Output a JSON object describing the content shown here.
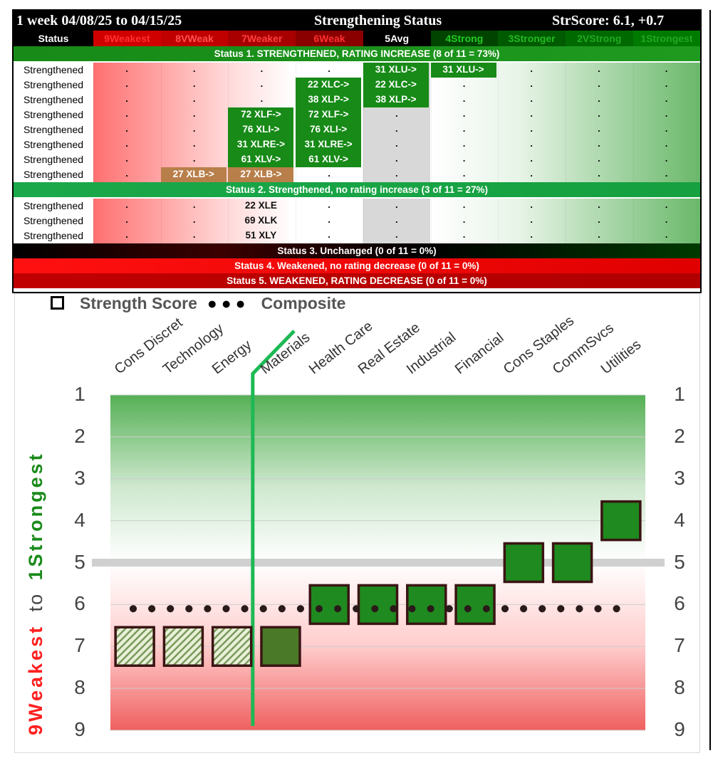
{
  "header": {
    "period": "1 week 04/08/25 to 04/15/25",
    "title": "Strengthening Status",
    "score": "StrScore: 6.1, +0.7"
  },
  "columns": {
    "status": "Status",
    "levels": [
      "9Weakest",
      "8VWeak",
      "7Weaker",
      "6Weak",
      "5Avg",
      "4Strong",
      "3Stronger",
      "2VStrong",
      "1Strongest"
    ],
    "level_colors": [
      "#ff3030",
      "#ff5050",
      "#ff4040",
      "#ff3030",
      "#ffffff",
      "#22cc22",
      "#22bb22",
      "#22aa22",
      "#22aa22"
    ]
  },
  "bands": {
    "s1": "Status 1. STRENGTHENED, RATING INCREASE (8 of 11 = 73%)",
    "s2": "Status 2. Strengthened, no rating increase (3 of 11 = 27%)",
    "s3": "Status 3. Unchanged (0 of 11 = 0%)",
    "s4": "Status 4. Weakened, no rating decrease (0 of 11 = 0%)",
    "s5": "Status 5. WEAKENED, RATING DECREASE (0 of 11 = 0%)"
  },
  "rows": [
    {
      "status": "Strengthened",
      "cells": [
        {
          "col": 4,
          "text": "31 XLU->",
          "style": "g"
        },
        {
          "col": 5,
          "text": "31 XLU->",
          "style": "g"
        }
      ]
    },
    {
      "status": "Strengthened",
      "cells": [
        {
          "col": 3,
          "text": "22 XLC->",
          "style": "g"
        },
        {
          "col": 4,
          "text": "22 XLC->",
          "style": "g"
        }
      ]
    },
    {
      "status": "Strengthened",
      "cells": [
        {
          "col": 3,
          "text": "38 XLP->",
          "style": "g"
        },
        {
          "col": 4,
          "text": "38 XLP->",
          "style": "g"
        }
      ]
    },
    {
      "status": "Strengthened",
      "cells": [
        {
          "col": 2,
          "text": "72 XLF->",
          "style": "g"
        },
        {
          "col": 3,
          "text": "72 XLF->",
          "style": "g"
        }
      ]
    },
    {
      "status": "Strengthened",
      "cells": [
        {
          "col": 2,
          "text": "76 XLI->",
          "style": "g"
        },
        {
          "col": 3,
          "text": "76 XLI->",
          "style": "g"
        }
      ]
    },
    {
      "status": "Strengthened",
      "cells": [
        {
          "col": 2,
          "text": "31 XLRE->",
          "style": "g"
        },
        {
          "col": 3,
          "text": "31 XLRE->",
          "style": "g"
        }
      ]
    },
    {
      "status": "Strengthened",
      "cells": [
        {
          "col": 2,
          "text": "61 XLV->",
          "style": "g"
        },
        {
          "col": 3,
          "text": "61 XLV->",
          "style": "g"
        }
      ]
    },
    {
      "status": "Strengthened",
      "cells": [
        {
          "col": 1,
          "text": "27 XLB->",
          "style": "b"
        },
        {
          "col": 2,
          "text": "27 XLB->",
          "style": "b"
        }
      ]
    },
    {
      "status": "Strengthened",
      "cells": [
        {
          "col": 2,
          "text": "22 XLE",
          "style": "t"
        }
      ]
    },
    {
      "status": "Strengthened",
      "cells": [
        {
          "col": 2,
          "text": "69 XLK",
          "style": "t"
        }
      ]
    },
    {
      "status": "Strengthened",
      "cells": [
        {
          "col": 2,
          "text": "51 XLY",
          "style": "t"
        }
      ]
    }
  ],
  "dot_char": ".",
  "legend": {
    "score": "Strength Score",
    "composite": "Composite"
  },
  "y_title": {
    "weak": "9Weakest",
    "to": "to",
    "strong": "1Strongest"
  },
  "chart_data": {
    "type": "scatter",
    "categories": [
      "Cons Discret",
      "Technology",
      "Energy",
      "Materials",
      "Health Care",
      "Real Estate",
      "Industrial",
      "Financial",
      "Cons Staples",
      "CommSvcs",
      "Utilities"
    ],
    "values": [
      7,
      7,
      7,
      7,
      6,
      6,
      6,
      6,
      5,
      5,
      4
    ],
    "styles": [
      "hatched",
      "hatched",
      "hatched",
      "olive",
      "green",
      "green",
      "green",
      "green",
      "green",
      "green",
      "green"
    ],
    "composite": 6.1,
    "average_line": 5,
    "ylim": [
      1,
      9
    ],
    "y_ticks": [
      "1",
      "2",
      "3",
      "4",
      "5",
      "6",
      "7",
      "8",
      "9"
    ],
    "divider_after_index": 2
  }
}
